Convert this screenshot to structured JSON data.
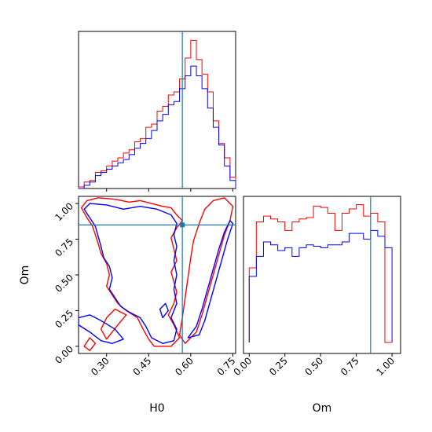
{
  "colors": {
    "series1": "#ff0000",
    "series2": "#0000ff",
    "truth": "#1f77b4",
    "axes": "#000000"
  },
  "chart_data": {
    "type": "corner",
    "parameters": [
      "H0",
      "Om"
    ],
    "truth": {
      "H0": 0.57,
      "Om": 0.85
    },
    "series": [
      {
        "color": "#ff0000",
        "H0_hist": {
          "edges": [
            0.2,
            0.22,
            0.24,
            0.26,
            0.28,
            0.3,
            0.32,
            0.34,
            0.36,
            0.38,
            0.4,
            0.42,
            0.44,
            0.46,
            0.48,
            0.5,
            0.52,
            0.54,
            0.56,
            0.58,
            0.6,
            0.62,
            0.64,
            0.66,
            0.68,
            0.7,
            0.72,
            0.74,
            0.76
          ],
          "values": [
            1,
            4,
            5,
            10,
            11,
            14,
            17,
            19,
            22,
            24,
            29,
            31,
            38,
            40,
            48,
            51,
            58,
            60,
            68,
            81,
            92,
            80,
            71,
            60,
            42,
            28,
            19,
            7
          ]
        },
        "Om_hist": {
          "edges": [
            0.0,
            0.05,
            0.1,
            0.15,
            0.2,
            0.25,
            0.3,
            0.35,
            0.4,
            0.45,
            0.5,
            0.55,
            0.6,
            0.65,
            0.7,
            0.75,
            0.8,
            0.85,
            0.9,
            0.95,
            1.0
          ],
          "values": [
            52,
            84,
            88,
            86,
            84,
            78,
            84,
            86,
            87,
            95,
            94,
            90,
            78,
            90,
            93,
            96,
            88,
            90,
            84,
            0
          ]
        }
      },
      {
        "color": "#0000ff",
        "H0_hist": {
          "edges": [
            0.2,
            0.22,
            0.24,
            0.26,
            0.28,
            0.3,
            0.32,
            0.34,
            0.36,
            0.38,
            0.4,
            0.42,
            0.44,
            0.46,
            0.48,
            0.5,
            0.52,
            0.54,
            0.56,
            0.58,
            0.6,
            0.62,
            0.64,
            0.66,
            0.68,
            0.7,
            0.72,
            0.74,
            0.76
          ],
          "values": [
            0,
            2,
            4,
            8,
            10,
            12,
            14,
            16,
            18,
            21,
            25,
            28,
            31,
            36,
            42,
            46,
            52,
            54,
            62,
            70,
            76,
            70,
            62,
            50,
            38,
            27,
            14,
            5
          ]
        },
        "Om_hist": {
          "edges": [
            0.0,
            0.05,
            0.1,
            0.15,
            0.2,
            0.25,
            0.3,
            0.35,
            0.4,
            0.45,
            0.5,
            0.55,
            0.6,
            0.65,
            0.7,
            0.75,
            0.8,
            0.85,
            0.9,
            0.95,
            1.0
          ],
          "values": [
            46,
            60,
            70,
            68,
            64,
            66,
            60,
            66,
            68,
            67,
            66,
            68,
            68,
            70,
            76,
            76,
            72,
            78,
            74,
            66
          ]
        }
      }
    ],
    "H0_axis": {
      "label": "H0",
      "range": [
        0.2,
        0.76
      ],
      "ticks": [
        0.3,
        0.45,
        0.6,
        0.75
      ],
      "tick_labels": [
        "0.30",
        "0.45",
        "0.60",
        "0.75"
      ]
    },
    "Om_axis": {
      "label": "Om",
      "range": [
        -0.05,
        1.05
      ],
      "ticks": [
        0.0,
        0.25,
        0.5,
        0.75,
        1.0
      ],
      "tick_labels": [
        "0.00",
        "0.25",
        "0.50",
        "0.75",
        "1.00"
      ]
    },
    "Om_hist_xrange": [
      -0.04,
      1.06
    ],
    "contours": [
      {
        "color": "#ff0000",
        "points": [
          [
            0.21,
            0.97
          ],
          [
            0.23,
            1.02
          ],
          [
            0.27,
            1.04
          ],
          [
            0.33,
            1.03
          ],
          [
            0.38,
            1.01
          ],
          [
            0.42,
            1.02
          ],
          [
            0.46,
            1.0
          ],
          [
            0.5,
            0.98
          ],
          [
            0.53,
            0.97
          ],
          [
            0.55,
            0.92
          ],
          [
            0.57,
            0.88
          ],
          [
            0.55,
            0.83
          ],
          [
            0.53,
            0.76
          ],
          [
            0.54,
            0.68
          ],
          [
            0.55,
            0.6
          ],
          [
            0.53,
            0.52
          ],
          [
            0.54,
            0.45
          ],
          [
            0.55,
            0.38
          ],
          [
            0.54,
            0.3
          ],
          [
            0.52,
            0.22
          ],
          [
            0.54,
            0.15
          ],
          [
            0.56,
            0.06
          ],
          [
            0.53,
            0.0
          ],
          [
            0.47,
            0.0
          ],
          [
            0.45,
            0.05
          ],
          [
            0.43,
            0.12
          ],
          [
            0.41,
            0.2
          ],
          [
            0.37,
            0.25
          ],
          [
            0.34,
            0.3
          ],
          [
            0.32,
            0.36
          ],
          [
            0.3,
            0.42
          ],
          [
            0.31,
            0.5
          ],
          [
            0.3,
            0.58
          ],
          [
            0.28,
            0.65
          ],
          [
            0.27,
            0.72
          ],
          [
            0.26,
            0.78
          ],
          [
            0.25,
            0.84
          ],
          [
            0.23,
            0.9
          ],
          [
            0.21,
            0.97
          ]
        ]
      },
      {
        "color": "#ff0000",
        "points": [
          [
            0.58,
            0.02
          ],
          [
            0.62,
            0.1
          ],
          [
            0.64,
            0.22
          ],
          [
            0.66,
            0.36
          ],
          [
            0.68,
            0.5
          ],
          [
            0.7,
            0.64
          ],
          [
            0.72,
            0.78
          ],
          [
            0.74,
            0.88
          ],
          [
            0.75,
            0.98
          ],
          [
            0.72,
            1.04
          ],
          [
            0.68,
            1.02
          ],
          [
            0.65,
            0.96
          ],
          [
            0.63,
            0.86
          ],
          [
            0.61,
            0.74
          ],
          [
            0.6,
            0.62
          ],
          [
            0.59,
            0.48
          ],
          [
            0.58,
            0.34
          ],
          [
            0.57,
            0.2
          ],
          [
            0.56,
            0.08
          ],
          [
            0.58,
            0.02
          ]
        ]
      },
      {
        "color": "#ff0000",
        "points": [
          [
            0.22,
            0.0
          ],
          [
            0.24,
            0.06
          ],
          [
            0.26,
            0.02
          ],
          [
            0.24,
            -0.03
          ],
          [
            0.22,
            0.0
          ]
        ]
      },
      {
        "color": "#ff0000",
        "points": [
          [
            0.3,
            0.05
          ],
          [
            0.34,
            0.15
          ],
          [
            0.37,
            0.22
          ],
          [
            0.33,
            0.26
          ],
          [
            0.3,
            0.2
          ],
          [
            0.28,
            0.12
          ],
          [
            0.3,
            0.05
          ]
        ]
      },
      {
        "color": "#0000ff",
        "points": [
          [
            0.22,
            0.96
          ],
          [
            0.24,
            1.0
          ],
          [
            0.3,
            0.99
          ],
          [
            0.36,
            0.96
          ],
          [
            0.42,
            0.98
          ],
          [
            0.48,
            0.96
          ],
          [
            0.53,
            0.92
          ],
          [
            0.55,
            0.86
          ],
          [
            0.54,
            0.78
          ],
          [
            0.55,
            0.7
          ],
          [
            0.54,
            0.6
          ],
          [
            0.55,
            0.5
          ],
          [
            0.54,
            0.4
          ],
          [
            0.55,
            0.3
          ],
          [
            0.53,
            0.2
          ],
          [
            0.55,
            0.12
          ],
          [
            0.54,
            0.04
          ],
          [
            0.5,
            0.02
          ],
          [
            0.46,
            0.06
          ],
          [
            0.44,
            0.14
          ],
          [
            0.42,
            0.2
          ],
          [
            0.38,
            0.24
          ],
          [
            0.35,
            0.28
          ],
          [
            0.33,
            0.34
          ],
          [
            0.31,
            0.4
          ],
          [
            0.32,
            0.48
          ],
          [
            0.31,
            0.56
          ],
          [
            0.29,
            0.62
          ],
          [
            0.28,
            0.7
          ],
          [
            0.27,
            0.77
          ],
          [
            0.26,
            0.84
          ],
          [
            0.24,
            0.9
          ],
          [
            0.22,
            0.96
          ]
        ]
      },
      {
        "color": "#0000ff",
        "points": [
          [
            0.59,
            0.06
          ],
          [
            0.62,
            0.14
          ],
          [
            0.64,
            0.26
          ],
          [
            0.66,
            0.4
          ],
          [
            0.68,
            0.54
          ],
          [
            0.7,
            0.68
          ],
          [
            0.72,
            0.8
          ],
          [
            0.74,
            0.88
          ],
          [
            0.75,
            0.86
          ],
          [
            0.73,
            0.74
          ],
          [
            0.71,
            0.6
          ],
          [
            0.69,
            0.46
          ],
          [
            0.67,
            0.32
          ],
          [
            0.65,
            0.18
          ],
          [
            0.63,
            0.08
          ],
          [
            0.59,
            0.06
          ]
        ]
      },
      {
        "color": "#0000ff",
        "points": [
          [
            0.2,
            0.15
          ],
          [
            0.24,
            0.1
          ],
          [
            0.28,
            0.04
          ],
          [
            0.32,
            0.02
          ],
          [
            0.36,
            0.05
          ],
          [
            0.33,
            0.12
          ],
          [
            0.28,
            0.18
          ],
          [
            0.24,
            0.22
          ],
          [
            0.2,
            0.2
          ],
          [
            0.2,
            0.15
          ]
        ]
      },
      {
        "color": "#0000ff",
        "points": [
          [
            0.5,
            0.2
          ],
          [
            0.52,
            0.25
          ],
          [
            0.51,
            0.3
          ],
          [
            0.49,
            0.26
          ],
          [
            0.5,
            0.2
          ]
        ]
      }
    ]
  }
}
